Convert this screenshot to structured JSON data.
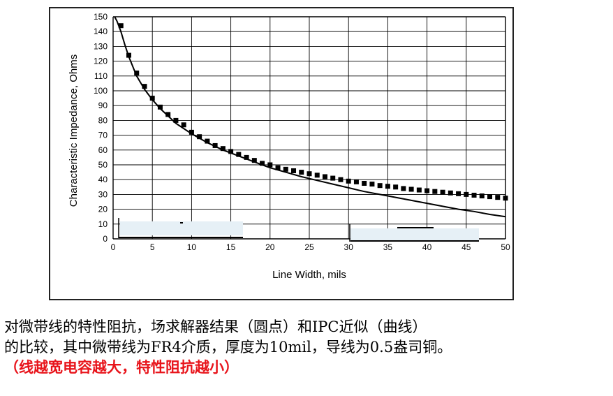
{
  "chart_data": {
    "type": "line",
    "xlabel": "Line Width, mils",
    "ylabel": "Characteristic Impedance, Ohms",
    "xlim": [
      0,
      50
    ],
    "ylim": [
      0,
      150
    ],
    "xticks": [
      0,
      5,
      10,
      15,
      20,
      25,
      30,
      35,
      40,
      45,
      50
    ],
    "yticks": [
      0,
      10,
      20,
      30,
      40,
      50,
      60,
      70,
      80,
      90,
      100,
      110,
      120,
      130,
      140,
      150
    ],
    "grid": true,
    "series": [
      {
        "style": "markers",
        "x": [
          1,
          2,
          3,
          4,
          5,
          6,
          7,
          8,
          9,
          10,
          11,
          12,
          13,
          14,
          15,
          16,
          17,
          18,
          19,
          20,
          21,
          22,
          23,
          24,
          25,
          26,
          27,
          28,
          29,
          30,
          31,
          32,
          33,
          34,
          35,
          36,
          37,
          38,
          39,
          40,
          41,
          42,
          43,
          44,
          45,
          46,
          47,
          48,
          49,
          50
        ],
        "y": [
          144,
          124,
          112,
          103,
          95,
          89,
          84,
          80,
          77,
          72,
          69,
          66,
          63,
          61,
          59,
          57,
          55,
          53,
          51,
          50,
          48,
          47,
          46,
          45,
          44,
          43,
          42,
          41,
          40,
          39,
          38.5,
          37.5,
          37,
          36,
          35.5,
          35,
          34,
          33.5,
          33,
          32.5,
          32,
          31.5,
          31,
          30.5,
          30,
          29.5,
          29,
          28.5,
          28,
          27.5
        ]
      },
      {
        "style": "line",
        "x": [
          0.2,
          0.5,
          1,
          1.5,
          2,
          3,
          4,
          5,
          6,
          7,
          8,
          10,
          12,
          14,
          16,
          18,
          20,
          22,
          24,
          26,
          28,
          30,
          32,
          34,
          36,
          38,
          40,
          42,
          44,
          46,
          48,
          50
        ],
        "y": [
          150,
          147,
          140,
          131,
          123,
          110,
          101,
          94,
          88,
          83,
          78,
          71,
          65,
          60,
          56,
          52,
          48,
          45,
          42,
          39.5,
          37,
          34.5,
          32,
          30,
          28,
          26,
          24,
          22,
          20,
          18.5,
          16.5,
          15
        ]
      }
    ]
  },
  "caption": {
    "line1": "对微带线的特性阻抗，场求解器结果（圆点）和IPC近似（曲线）",
    "line2": "的比较，其中微带线为FR4介质，厚度为10mil，导线为0.5盎司铜。",
    "line3": "（线越宽电容越大，特性阻抗越小）"
  }
}
